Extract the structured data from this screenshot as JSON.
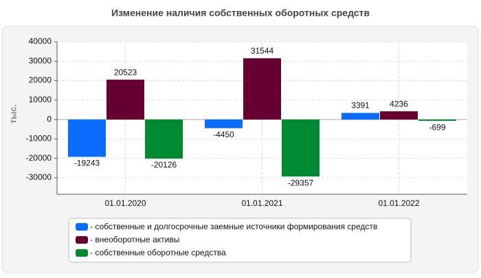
{
  "chart_data": {
    "type": "bar",
    "title": "Изменение наличия собственных оборотных средств",
    "y_label": "тыс.",
    "categories": [
      "01.01.2020",
      "01.01.2021",
      "01.01.2022"
    ],
    "series": [
      {
        "name": "- собственные и долгосрочные заемные источники формирования средств",
        "color": "#0a6cff",
        "values": [
          -19243,
          -4450,
          3391
        ]
      },
      {
        "name": "- внеоборотные активы",
        "color": "#660033",
        "values": [
          20523,
          31544,
          4236
        ]
      },
      {
        "name": "- собственные оборотные средства",
        "color": "#008a32",
        "values": [
          -20126,
          -29357,
          -699
        ]
      }
    ],
    "ylim": [
      -38500,
      40000
    ],
    "yticks": [
      -30000,
      -20000,
      -10000,
      0,
      10000,
      20000,
      30000,
      40000
    ],
    "grid": true,
    "legend": "bottom"
  }
}
